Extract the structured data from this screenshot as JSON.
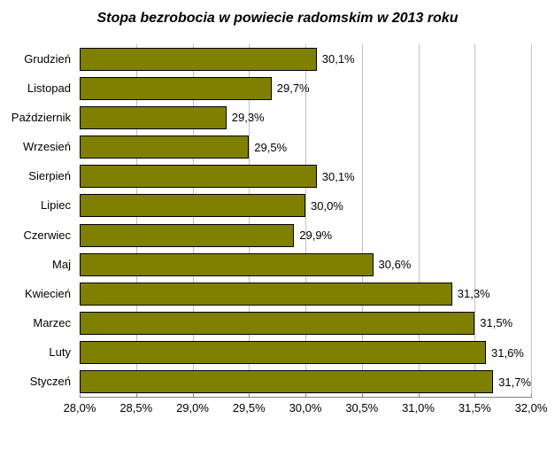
{
  "chart": {
    "type": "bar-horizontal",
    "title": "Stopa bezrobocia w powiecie radomskim w 2013 roku",
    "title_fontsize": 16,
    "title_fontstyle": "italic",
    "title_fontweight": "bold",
    "background_color": "#ffffff",
    "grid_color": "#c0c0c0",
    "axis_color": "#808080",
    "bar_color": "#808000",
    "bar_border_color": "#000000",
    "label_fontsize": 13,
    "xlim": [
      28.0,
      32.0
    ],
    "xtick_step": 0.5,
    "xticks": [
      {
        "v": 28.0,
        "label": "28,0%"
      },
      {
        "v": 28.5,
        "label": "28,5%"
      },
      {
        "v": 29.0,
        "label": "29,0%"
      },
      {
        "v": 29.5,
        "label": "29,5%"
      },
      {
        "v": 30.0,
        "label": "30,0%"
      },
      {
        "v": 30.5,
        "label": "30,5%"
      },
      {
        "v": 31.0,
        "label": "31,0%"
      },
      {
        "v": 31.5,
        "label": "31,5%"
      },
      {
        "v": 32.0,
        "label": "32,0%"
      }
    ],
    "categories": [
      {
        "name": "Grudzień",
        "value": 30.1,
        "value_label": "30,1%"
      },
      {
        "name": "Listopad",
        "value": 29.7,
        "value_label": "29,7%"
      },
      {
        "name": "Październik",
        "value": 29.3,
        "value_label": "29,3%"
      },
      {
        "name": "Wrzesień",
        "value": 29.5,
        "value_label": "29,5%"
      },
      {
        "name": "Sierpień",
        "value": 30.1,
        "value_label": "30,1%"
      },
      {
        "name": "Lipiec",
        "value": 30.0,
        "value_label": "30,0%"
      },
      {
        "name": "Czerwiec",
        "value": 29.9,
        "value_label": "29,9%"
      },
      {
        "name": "Maj",
        "value": 30.6,
        "value_label": "30,6%"
      },
      {
        "name": "Kwiecień",
        "value": 31.3,
        "value_label": "31,3%"
      },
      {
        "name": "Marzec",
        "value": 31.5,
        "value_label": "31,5%"
      },
      {
        "name": "Luty",
        "value": 31.6,
        "value_label": "31,6%"
      },
      {
        "name": "Styczeń",
        "value": 31.7,
        "value_label": "31,7%"
      }
    ]
  }
}
